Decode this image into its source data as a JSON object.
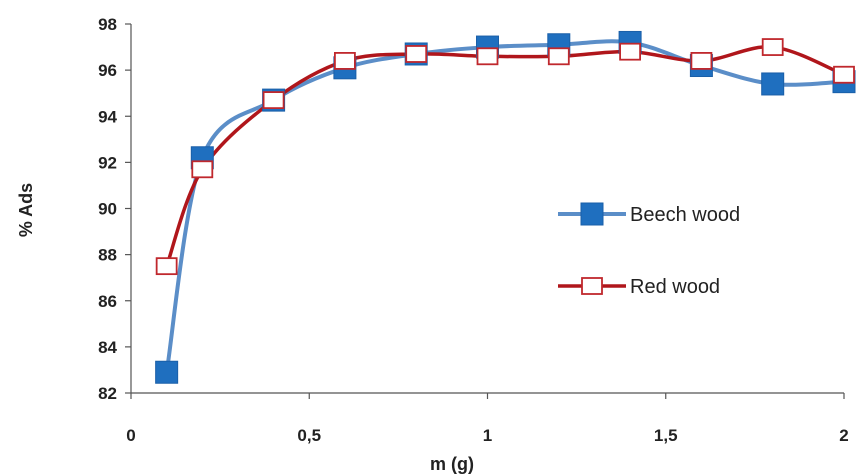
{
  "chart_data": {
    "type": "line",
    "title": "",
    "xlabel": "m (g)",
    "ylabel": "% Ads",
    "xlim": [
      0,
      2
    ],
    "ylim": [
      82,
      98
    ],
    "x_ticks": [
      "0",
      "0,5",
      "1",
      "1,5",
      "2"
    ],
    "y_ticks": [
      "82",
      "84",
      "86",
      "88",
      "90",
      "92",
      "94",
      "96",
      "98"
    ],
    "grid": false,
    "legend_position": "right",
    "series": [
      {
        "name": "Beech wood",
        "color": "#5b8ec8",
        "marker": "filled-square",
        "marker_color": "#1f6fbf",
        "x": [
          0.1,
          0.2,
          0.4,
          0.6,
          0.8,
          1.0,
          1.2,
          1.4,
          1.6,
          1.8,
          2.0
        ],
        "y": [
          82.9,
          92.2,
          94.7,
          96.1,
          96.7,
          97.0,
          97.1,
          97.2,
          96.2,
          95.4,
          95.5
        ]
      },
      {
        "name": "Red wood",
        "color": "#b0161b",
        "marker": "open-square",
        "marker_color": "#c0282d",
        "x": [
          0.1,
          0.2,
          0.4,
          0.6,
          0.8,
          1.0,
          1.2,
          1.4,
          1.6,
          1.8,
          2.0
        ],
        "y": [
          87.5,
          91.7,
          94.7,
          96.4,
          96.7,
          96.6,
          96.6,
          96.8,
          96.4,
          97.0,
          95.8
        ]
      }
    ]
  }
}
